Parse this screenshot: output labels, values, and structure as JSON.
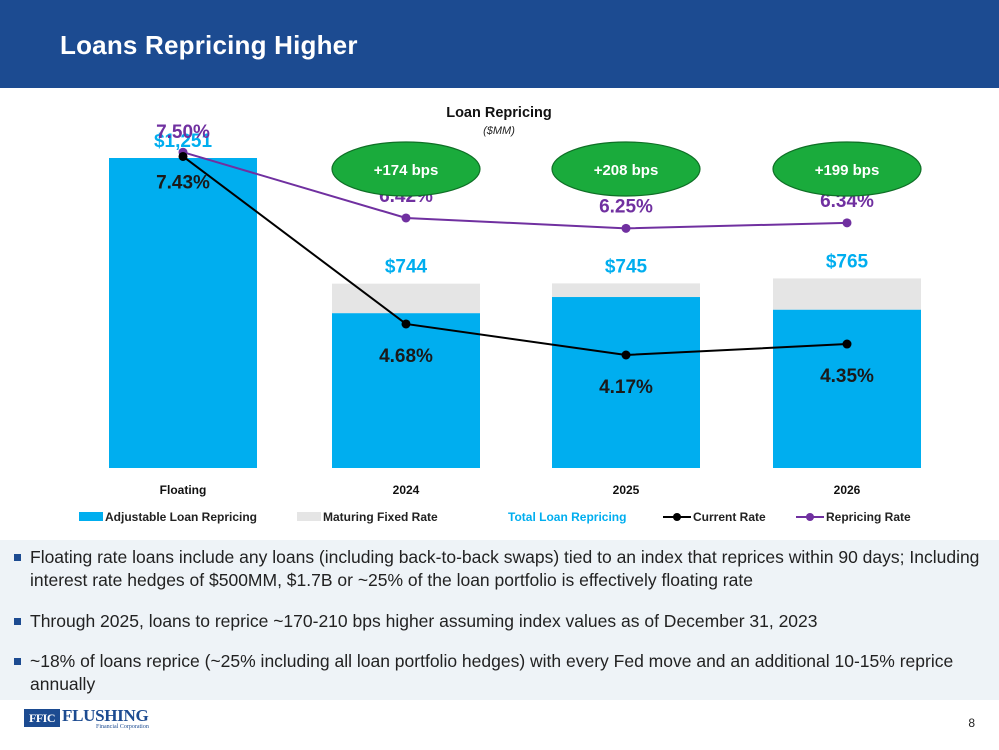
{
  "header": {
    "title": "Loans Repricing Higher"
  },
  "chart_data": {
    "type": "bar",
    "title": "Loan Repricing",
    "subtitle": "($MM)",
    "categories": [
      "Floating",
      "2024",
      "2025",
      "2026"
    ],
    "ylim": [
      0,
      1251
    ],
    "series": [
      {
        "name": "Adjustable Loan Repricing",
        "kind": "bar",
        "color": "#00aeef",
        "values": [
          1251,
          625,
          690,
          639
        ]
      },
      {
        "name": "Maturing Fixed Rate",
        "kind": "bar",
        "color": "#e5e5e5",
        "values": [
          0,
          119,
          55,
          126
        ]
      },
      {
        "name": "Total Loan Repricing",
        "kind": "label",
        "color": "#00aeef",
        "values": [
          1251,
          744,
          745,
          765
        ],
        "labels": [
          "$1,251",
          "$744",
          "$745",
          "$765"
        ]
      },
      {
        "name": "Current Rate",
        "kind": "line",
        "color": "#000000",
        "values": [
          7.43,
          4.68,
          4.17,
          4.35
        ],
        "labels": [
          "7.43%",
          "4.68%",
          "4.17%",
          "4.35%"
        ]
      },
      {
        "name": "Repricing Rate",
        "kind": "line",
        "color": "#7030a0",
        "values": [
          7.5,
          6.42,
          6.25,
          6.34
        ],
        "labels": [
          "7.50%",
          "6.42%",
          "6.25%",
          "6.34%"
        ]
      }
    ],
    "annotations": [
      {
        "category": "2024",
        "text": "+174 bps"
      },
      {
        "category": "2025",
        "text": "+208 bps"
      },
      {
        "category": "2026",
        "text": "+199 bps"
      }
    ],
    "legend_position": "bottom",
    "grid": false
  },
  "bullets": [
    "Floating rate loans include any loans (including back-to-back swaps) tied to an index that reprices within 90 days; Including interest rate hedges of $500MM, $1.7B or ~25% of the loan portfolio  is effectively floating rate",
    "Through 2025, loans to reprice ~170-210 bps higher assuming index values as of December 31, 2023",
    "~18% of loans reprice (~25% including all loan portfolio hedges) with every Fed move and an additional 10-15% reprice annually"
  ],
  "footer": {
    "logo_mark": "FFIC",
    "logo_name": "FLUSHING",
    "logo_sub": "Financial Corporation",
    "page_number": "8"
  },
  "colors": {
    "header_bg": "#1c4b91",
    "bar_blue": "#00aeef",
    "bar_gray": "#e5e5e5",
    "badge_green": "#1aab3c",
    "repricing_purple": "#7030a0"
  }
}
